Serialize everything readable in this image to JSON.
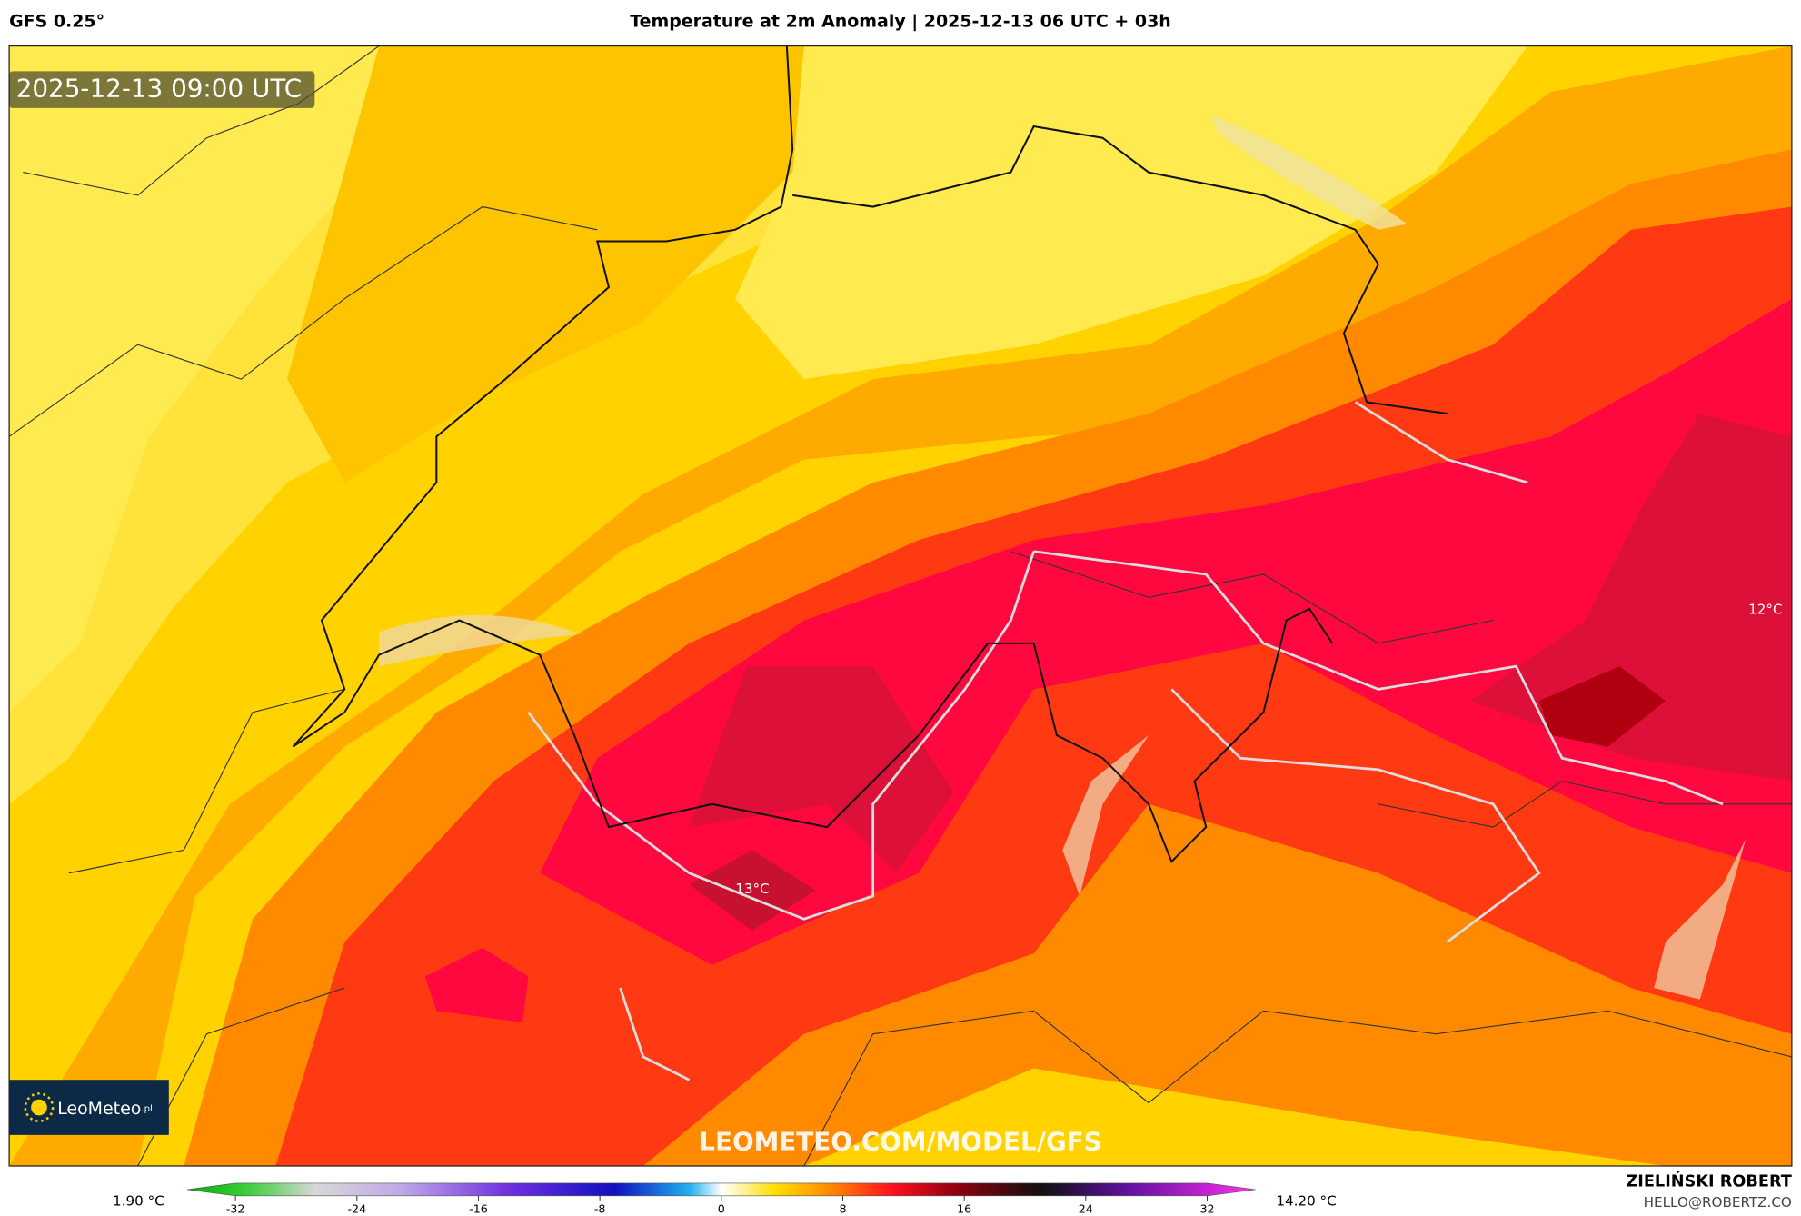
{
  "header": {
    "model": "GFS 0.25°",
    "title": "Temperature at 2m Anomaly | 2025-12-13 06 UTC + 03h"
  },
  "map": {
    "timestamp": "2025-12-13 09:00 UTC",
    "logo": "LeoMeteo",
    "logo_suffix": ".pl",
    "watermark": "LEOMETEO.COM/MODEL/GFS",
    "labels": [
      "13°C",
      "12°C"
    ]
  },
  "colorbar": {
    "min_label": "1.90 °C",
    "max_label": "14.20 °C",
    "ticks": [
      -32,
      -24,
      -16,
      -8,
      0,
      8,
      16,
      24,
      32
    ]
  },
  "footer": {
    "author": "ZIELIŃSKI ROBERT",
    "contact": "HELLO@ROBERTZ.CO"
  }
}
